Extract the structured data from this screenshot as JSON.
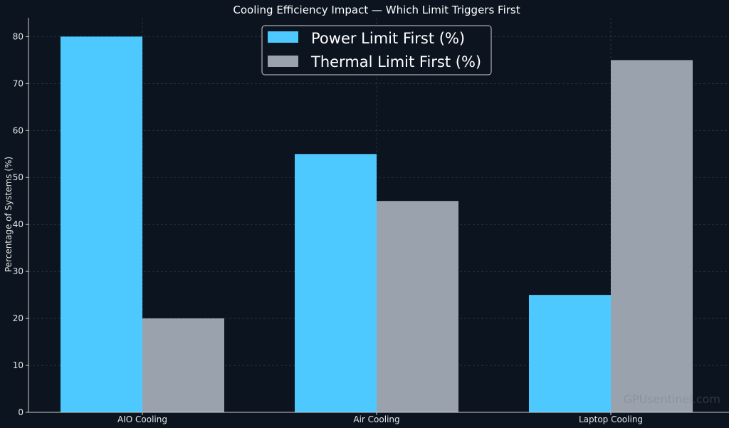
{
  "chart_data": {
    "type": "bar",
    "title": "Cooling Efficiency Impact — Which Limit Triggers First",
    "xlabel": "",
    "ylabel": "Percentage of Systems (%)",
    "categories": [
      "AIO Cooling",
      "Air Cooling",
      "Laptop Cooling"
    ],
    "series": [
      {
        "name": "Power Limit First (%)",
        "values": [
          80,
          55,
          25
        ],
        "color": "#4dc9ff"
      },
      {
        "name": "Thermal Limit First (%)",
        "values": [
          20,
          45,
          75
        ],
        "color": "#9aa3ad"
      }
    ],
    "ylim": [
      0,
      84
    ],
    "yticks": [
      0,
      10,
      20,
      30,
      40,
      50,
      60,
      70,
      80
    ],
    "grid": true,
    "legend_position": "top-center",
    "background_color": "#0c1420"
  },
  "watermark": "GPUsentinel.com"
}
